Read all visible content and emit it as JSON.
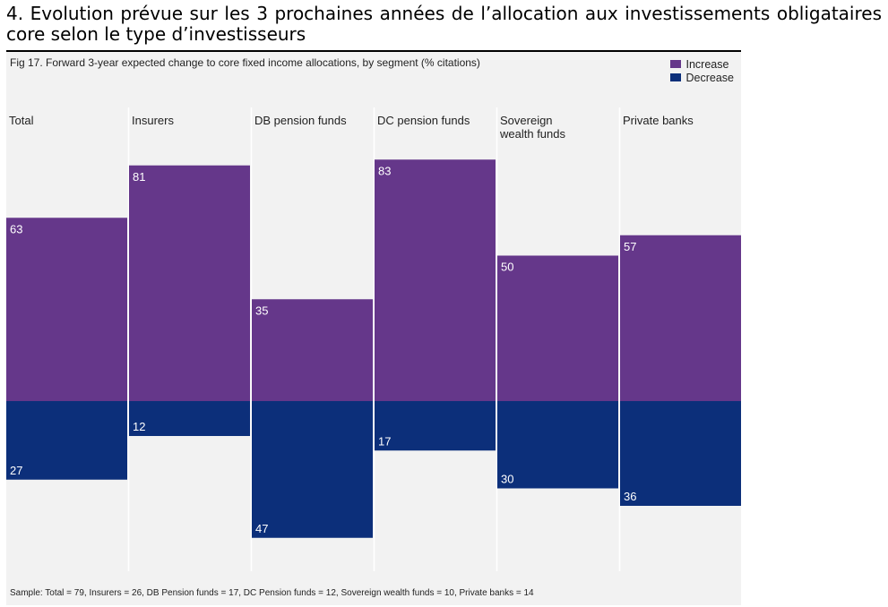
{
  "heading": "4. Evolution prévue sur les 3 prochaines années de l’allocation aux investissements obligataires core selon le type d’investisseurs",
  "figure": {
    "title": "Fig 17. Forward 3-year expected change to core fixed income allocations, by segment (% citations)",
    "footer": "Sample: Total = 79, Insurers = 26, DB Pension funds = 17, DC Pension funds = 12, Sovereign wealth funds = 10, Private banks = 14"
  },
  "colors": {
    "increase": "#65378a",
    "decrease": "#0c2f7a",
    "panel_bg": "#f2f2f2"
  },
  "chart_data": {
    "type": "bar",
    "categories": [
      [
        "Total"
      ],
      [
        "Insurers"
      ],
      [
        "DB pension funds"
      ],
      [
        "DC pension funds"
      ],
      [
        "Sovereign",
        "wealth funds"
      ],
      [
        "Private banks"
      ]
    ],
    "series": [
      {
        "name": "Increase",
        "values": [
          63,
          81,
          35,
          83,
          50,
          57
        ]
      },
      {
        "name": "Decrease",
        "values": [
          27,
          12,
          47,
          17,
          30,
          36
        ]
      }
    ],
    "legend": "top-right",
    "grid": false
  }
}
